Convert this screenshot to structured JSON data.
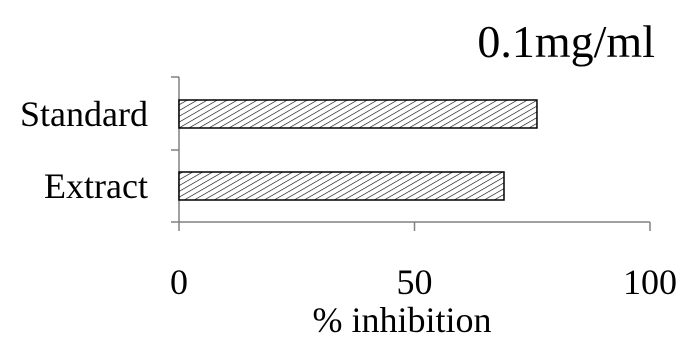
{
  "chart_data": {
    "type": "bar",
    "orientation": "horizontal",
    "title": "0.1mg/ml",
    "xlabel": "% inhibition",
    "ylabel": "",
    "categories": [
      "Standard",
      "Extract"
    ],
    "values": [
      76,
      69
    ],
    "xlim": [
      0,
      100
    ],
    "x_ticks": [
      "0",
      "50",
      "100"
    ],
    "grid": false,
    "legend": "none",
    "bar_fill": "diagonal hatch",
    "bar_color": "#000000"
  }
}
